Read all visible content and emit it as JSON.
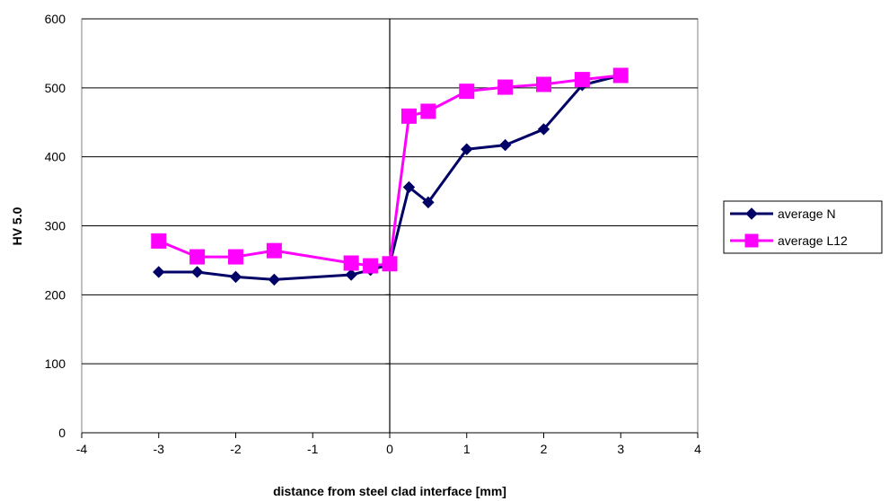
{
  "chart_data": {
    "type": "line",
    "xlabel": "distance from steel clad interface [mm]",
    "ylabel": "HV 5.0",
    "xlim": [
      -4,
      4
    ],
    "ylim": [
      0,
      600
    ],
    "x_ticks": [
      -4,
      -3,
      -2,
      -1,
      0,
      1,
      2,
      3,
      4
    ],
    "y_ticks": [
      0,
      100,
      200,
      300,
      400,
      500,
      600
    ],
    "grid": "horizontal major gridlines",
    "legend": "right",
    "series": [
      {
        "name": "average N",
        "color": "#000066",
        "marker": "diamond",
        "x": [
          -3,
          -2.5,
          -2,
          -1.5,
          -0.5,
          -0.25,
          0,
          0.25,
          0.5,
          1,
          1.5,
          2,
          2.5,
          3
        ],
        "y": [
          233,
          233,
          226,
          222,
          229,
          236,
          244,
          356,
          334,
          411,
          417,
          440,
          504,
          518
        ]
      },
      {
        "name": "average L12",
        "color": "#ff00ff",
        "marker": "square",
        "x": [
          -3,
          -2.5,
          -2,
          -1.5,
          -0.5,
          -0.25,
          0,
          0.25,
          0.5,
          1,
          1.5,
          2,
          2.5,
          3
        ],
        "y": [
          278,
          255,
          255,
          264,
          246,
          242,
          245,
          459,
          466,
          495,
          501,
          505,
          512,
          518
        ]
      }
    ]
  }
}
